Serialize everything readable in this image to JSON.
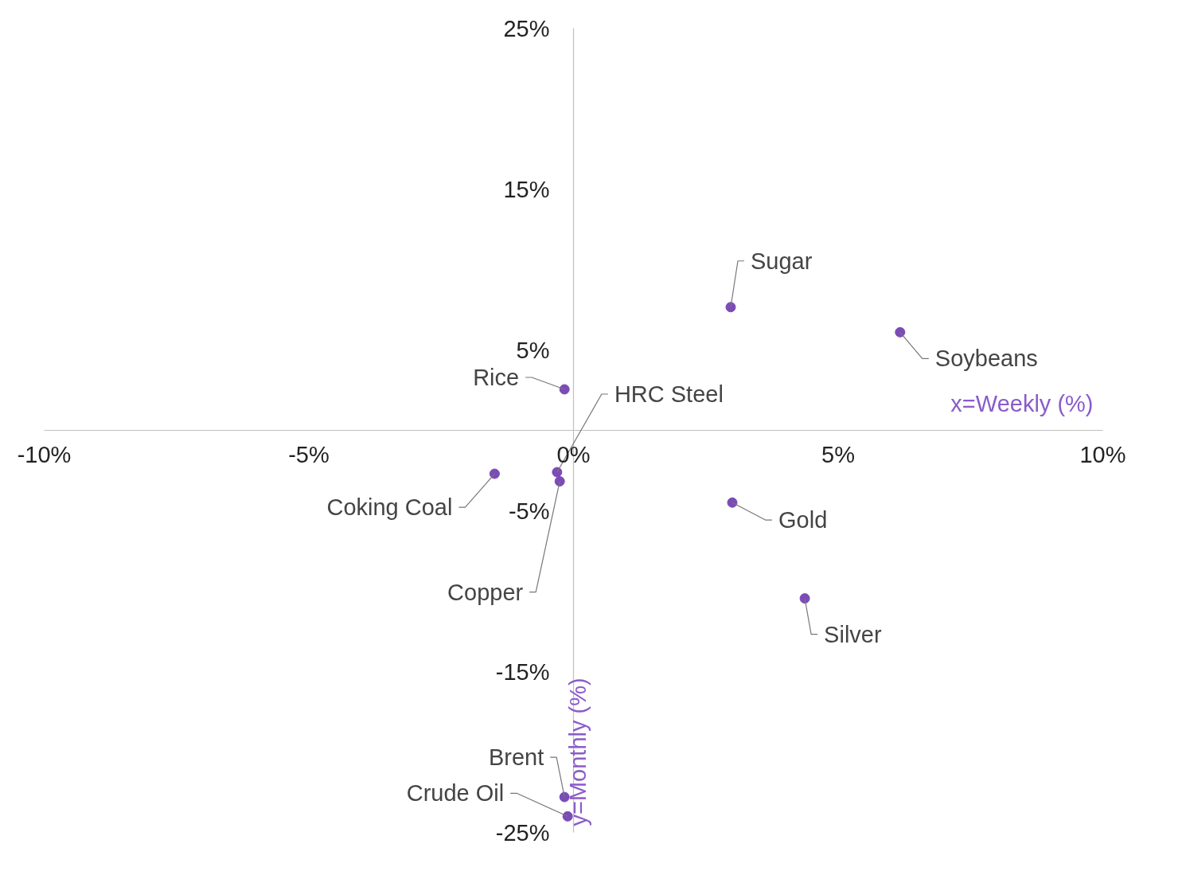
{
  "chart_data": {
    "type": "scatter",
    "xlabel": "x=Weekly (%)",
    "ylabel": "y=Monthly (%)",
    "x": [
      2.97,
      6.17,
      -0.17,
      -0.31,
      -0.26,
      -1.49,
      3.0,
      4.37,
      -0.17,
      -0.11
    ],
    "series": [
      {
        "color": "#7b4bb7",
        "values": [
          7.66,
          6.1,
          2.55,
          -2.6,
          -3.17,
          -2.7,
          -4.49,
          -10.45,
          -22.8,
          -24.0
        ]
      }
    ],
    "xlim": [
      -10,
      10
    ],
    "ylim": [
      -25,
      25
    ],
    "xticks": [
      {
        "value": -10,
        "label": "-10%"
      },
      {
        "value": -5,
        "label": "-5%"
      },
      {
        "value": 0,
        "label": "0%"
      },
      {
        "value": 5,
        "label": "5%"
      },
      {
        "value": 10,
        "label": "10%"
      }
    ],
    "yticks": [
      {
        "value": -25,
        "label": "-25%"
      },
      {
        "value": -15,
        "label": "-15%"
      },
      {
        "value": -5,
        "label": "-5%"
      },
      {
        "value": 5,
        "label": "5%"
      },
      {
        "value": 15,
        "label": "15%"
      },
      {
        "value": 25,
        "label": "25%"
      }
    ],
    "annotations": [
      {
        "text": "Sugar",
        "x": 2.97,
        "y": 7.66
      },
      {
        "text": "Soybeans",
        "x": 6.17,
        "y": 6.1
      },
      {
        "text": "Rice",
        "x": -0.17,
        "y": 2.55
      },
      {
        "text": "HRC Steel",
        "x": -0.31,
        "y": -2.6
      },
      {
        "text": "Copper",
        "x": -0.26,
        "y": -3.17
      },
      {
        "text": "Coking Coal",
        "x": -1.49,
        "y": -2.7
      },
      {
        "text": "Gold",
        "x": 3.0,
        "y": -4.49
      },
      {
        "text": "Silver",
        "x": 4.37,
        "y": -10.45
      },
      {
        "text": "Brent",
        "x": -0.17,
        "y": -22.8
      },
      {
        "text": "Crude Oil",
        "x": -0.11,
        "y": -24.0
      }
    ],
    "grid": false,
    "marker": "circle"
  }
}
